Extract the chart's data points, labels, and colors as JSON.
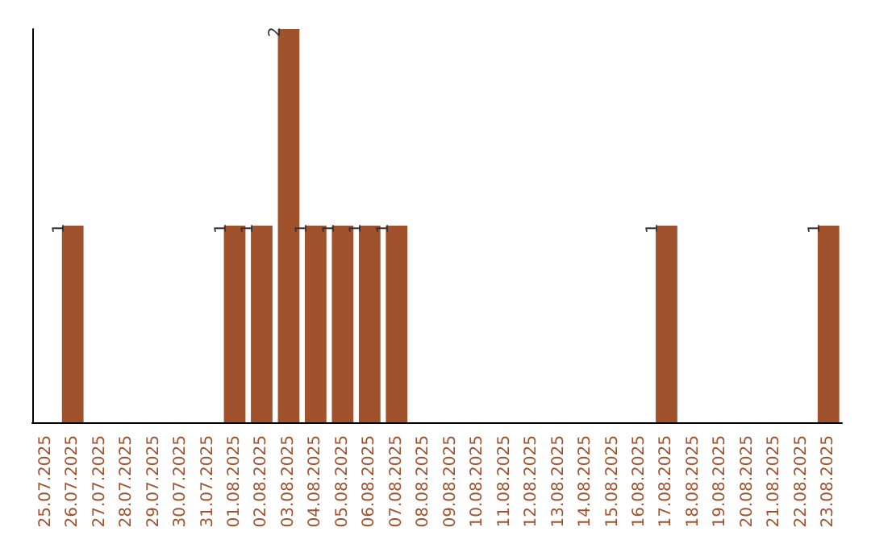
{
  "chart_data": {
    "type": "bar",
    "categories": [
      "25.07.2025",
      "26.07.2025",
      "27.07.2025",
      "28.07.2025",
      "29.07.2025",
      "30.07.2025",
      "31.07.2025",
      "01.08.2025",
      "02.08.2025",
      "03.08.2025",
      "04.08.2025",
      "05.08.2025",
      "06.08.2025",
      "07.08.2025",
      "08.08.2025",
      "09.08.2025",
      "10.08.2025",
      "11.08.2025",
      "12.08.2025",
      "13.08.2025",
      "14.08.2025",
      "15.08.2025",
      "16.08.2025",
      "17.08.2025",
      "18.08.2025",
      "19.08.2025",
      "20.08.2025",
      "21.08.2025",
      "22.08.2025",
      "23.08.2025"
    ],
    "values": [
      0,
      1,
      0,
      0,
      0,
      0,
      0,
      1,
      1,
      2,
      1,
      1,
      1,
      1,
      0,
      0,
      0,
      0,
      0,
      0,
      0,
      0,
      0,
      1,
      0,
      0,
      0,
      0,
      0,
      1
    ],
    "value_labels": [
      null,
      "1",
      null,
      null,
      null,
      null,
      null,
      "1",
      "1",
      "2",
      "1",
      "1",
      "1",
      "1",
      null,
      null,
      null,
      null,
      null,
      null,
      null,
      null,
      null,
      "1",
      null,
      null,
      null,
      null,
      null,
      "1"
    ],
    "color": "#a0522d",
    "tick_labels": "x"
  }
}
